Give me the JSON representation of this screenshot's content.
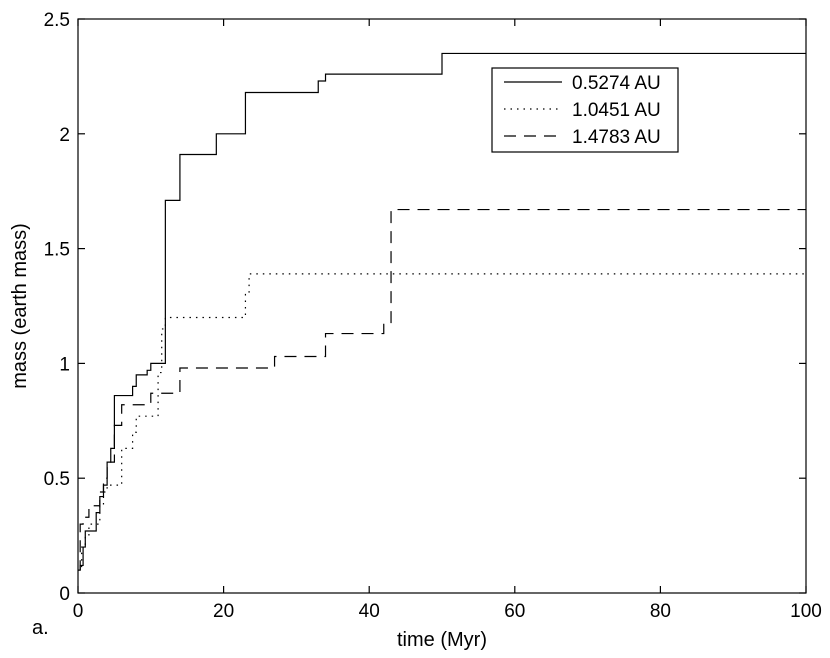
{
  "panel_label": "a.",
  "chart_data": {
    "type": "line",
    "title": "",
    "xlabel": "time (Myr)",
    "ylabel": "mass (earth mass)",
    "xlim": [
      0,
      100
    ],
    "ylim": [
      0,
      2.5
    ],
    "x_ticks": [
      0,
      20,
      40,
      60,
      80,
      100
    ],
    "y_ticks": [
      0,
      0.5,
      1,
      1.5,
      2,
      2.5
    ],
    "x_tick_labels": [
      "0",
      "20",
      "40",
      "60",
      "80",
      "100"
    ],
    "y_tick_labels": [
      "0",
      "0.5",
      "1",
      "1.5",
      "2",
      "2.5"
    ],
    "grid": false,
    "legend_position": "top-right",
    "step": true,
    "series": [
      {
        "name": "0.5274 AU",
        "line_style": "solid",
        "x": [
          0,
          0.3,
          0.7,
          1.0,
          1.5,
          2.5,
          3.0,
          3.5,
          4.0,
          4.5,
          5.0,
          7.0,
          7.5,
          8.0,
          9.0,
          9.5,
          10.0,
          11.0,
          12.0,
          12.5,
          14.0,
          19.0,
          23.0,
          32.0,
          33.0,
          34.0,
          50.0,
          100.0
        ],
        "y": [
          0.1,
          0.12,
          0.2,
          0.27,
          0.27,
          0.35,
          0.42,
          0.47,
          0.57,
          0.63,
          0.86,
          0.86,
          0.9,
          0.95,
          0.95,
          0.97,
          1.0,
          1.0,
          1.71,
          1.71,
          1.91,
          2.0,
          2.18,
          2.18,
          2.23,
          2.26,
          2.35,
          2.35
        ]
      },
      {
        "name": "1.0451 AU",
        "line_style": "dotted",
        "x": [
          0,
          0.5,
          1.0,
          1.5,
          2.0,
          3.0,
          3.5,
          4.0,
          5.0,
          6.0,
          7.0,
          7.5,
          8.0,
          10.0,
          11.0,
          11.5,
          12.0,
          22.0,
          23.0,
          23.5,
          100.0
        ],
        "y": [
          0.1,
          0.2,
          0.25,
          0.3,
          0.3,
          0.38,
          0.44,
          0.47,
          0.47,
          0.63,
          0.63,
          0.7,
          0.77,
          0.77,
          0.96,
          1.15,
          1.2,
          1.2,
          1.3,
          1.39,
          1.39
        ]
      },
      {
        "name": "1.4783 AU",
        "line_style": "dashed",
        "x": [
          0,
          0.3,
          0.7,
          1.0,
          1.5,
          2.0,
          3.0,
          3.5,
          4.0,
          5.0,
          6.0,
          8.0,
          10.0,
          12.0,
          13.0,
          14.0,
          27.0,
          34.0,
          41.0,
          42.0,
          43.0,
          100.0
        ],
        "y": [
          0.1,
          0.3,
          0.33,
          0.33,
          0.38,
          0.38,
          0.44,
          0.5,
          0.57,
          0.73,
          0.82,
          0.82,
          0.87,
          0.87,
          0.87,
          0.98,
          1.03,
          1.13,
          1.13,
          1.17,
          1.67,
          1.67
        ]
      }
    ]
  }
}
